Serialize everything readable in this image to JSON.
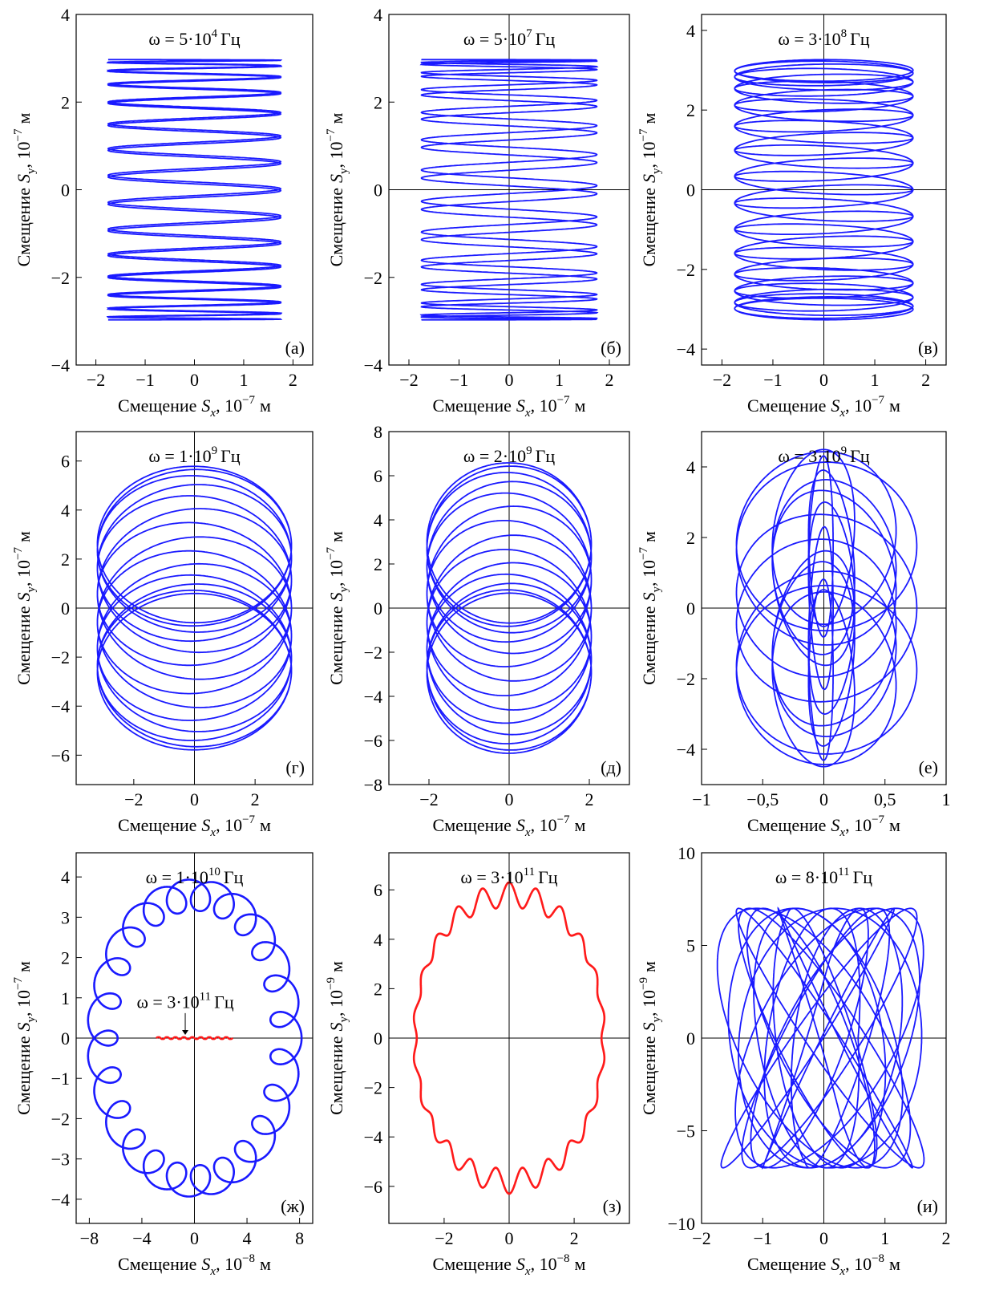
{
  "colors": {
    "blue": "#1a1aff",
    "red": "#ff1a1a",
    "axis": "#000000"
  },
  "chart_data": [
    {
      "type": "line",
      "panel_label": "(а)",
      "freq_base": "5·10",
      "freq_exp": "4",
      "freq_unit": "Гц",
      "xlabel_text": "Смещение",
      "xlabel_var": "S",
      "xlabel_sub": "x",
      "xlabel_pow": "10",
      "xlabel_exp": "−7",
      "xlabel_unit": "м",
      "ylabel_text": "Смещение",
      "ylabel_var": "S",
      "ylabel_sub": "y",
      "ylabel_pow": "10",
      "ylabel_exp": "−7",
      "ylabel_unit": "м",
      "xlim": [
        -2.4,
        2.4
      ],
      "ylim": [
        -4,
        4
      ],
      "xticks": [
        -2,
        -1,
        0,
        1,
        2
      ],
      "xtick_labels": [
        "−2",
        "−1",
        "0",
        "1",
        "2"
      ],
      "yticks": [
        -4,
        -2,
        0,
        2,
        4
      ],
      "ytick_labels": [
        "−4",
        "−2",
        "0",
        "2",
        "4"
      ],
      "zero_lines": false,
      "series": [
        {
          "color": "blue",
          "x_amp": 1.75,
          "y_amp": 2.97,
          "freq_ratio": 0.03,
          "loops": 30,
          "style": "lissajous"
        }
      ]
    },
    {
      "type": "line",
      "panel_label": "(б)",
      "freq_base": "5·10",
      "freq_exp": "7",
      "freq_unit": "Гц",
      "xlabel_text": "Смещение",
      "xlabel_var": "S",
      "xlabel_sub": "x",
      "xlabel_pow": "10",
      "xlabel_exp": "−7",
      "xlabel_unit": "м",
      "ylabel_text": "Смещение",
      "ylabel_var": "S",
      "ylabel_sub": "y",
      "ylabel_pow": "10",
      "ylabel_exp": "−7",
      "ylabel_unit": "м",
      "xlim": [
        -2.4,
        2.4
      ],
      "ylim": [
        -4,
        4
      ],
      "xticks": [
        -2,
        -1,
        0,
        1,
        2
      ],
      "xtick_labels": [
        "−2",
        "−1",
        "0",
        "1",
        "2"
      ],
      "yticks": [
        -4,
        -2,
        0,
        2,
        4
      ],
      "ytick_labels": [
        "−4",
        "−2",
        "0",
        "2",
        "4"
      ],
      "zero_lines": true,
      "series": [
        {
          "color": "blue",
          "x_amp": 1.75,
          "y_amp": 2.97,
          "freq_ratio": 0.033,
          "loops": 26,
          "style": "lissajous"
        }
      ]
    },
    {
      "type": "line",
      "panel_label": "(в)",
      "freq_base": "3·10",
      "freq_exp": "8",
      "freq_unit": "Гц",
      "xlabel_text": "Смещение",
      "xlabel_var": "S",
      "xlabel_sub": "x",
      "xlabel_pow": "10",
      "xlabel_exp": "−7",
      "xlabel_unit": "м",
      "ylabel_text": "Смещение",
      "ylabel_var": "S",
      "ylabel_sub": "y",
      "ylabel_pow": "10",
      "ylabel_exp": "−7",
      "ylabel_unit": "м",
      "xlim": [
        -2.4,
        2.4
      ],
      "ylim": [
        -4.4,
        4.4
      ],
      "xticks": [
        -2,
        -1,
        0,
        1,
        2
      ],
      "xtick_labels": [
        "−2",
        "−1",
        "0",
        "1",
        "2"
      ],
      "yticks": [
        -4,
        -2,
        0,
        2,
        4
      ],
      "ytick_labels": [
        "−4",
        "−2",
        "0",
        "2",
        "4"
      ],
      "zero_lines": true,
      "series": [
        {
          "color": "blue",
          "x_amp": 1.75,
          "y_amp": 3.0,
          "ring_ratio": 0.09,
          "freq_ratio": 0.038,
          "loops": 28,
          "style": "rings"
        }
      ]
    },
    {
      "type": "line",
      "panel_label": "(г)",
      "freq_base": "1·10",
      "freq_exp": "9",
      "freq_unit": "Гц",
      "xlabel_text": "Смещение",
      "xlabel_var": "S",
      "xlabel_sub": "x",
      "xlabel_pow": "10",
      "xlabel_exp": "−7",
      "xlabel_unit": "м",
      "ylabel_text": "Смещение",
      "ylabel_var": "S",
      "ylabel_sub": "y",
      "ylabel_pow": "10",
      "ylabel_exp": "−7",
      "ylabel_unit": "м",
      "xlim": [
        -3.9,
        3.9
      ],
      "ylim": [
        -7.2,
        7.2
      ],
      "xticks": [
        -2,
        0,
        2
      ],
      "xtick_labels": [
        "−2",
        "0",
        "2"
      ],
      "yticks": [
        -6,
        -4,
        -2,
        0,
        2,
        4,
        6
      ],
      "ytick_labels": [
        "−6",
        "−4",
        "−2",
        "0",
        "2",
        "4",
        "6"
      ],
      "zero_lines": true,
      "series": [
        {
          "color": "blue",
          "x_amp": 3.2,
          "y_amp": 5.8,
          "style": "drum",
          "loops": 14
        }
      ]
    },
    {
      "type": "line",
      "panel_label": "(д)",
      "freq_base": "2·10",
      "freq_exp": "9",
      "freq_unit": "Гц",
      "xlabel_text": "Смещение",
      "xlabel_var": "S",
      "xlabel_sub": "x",
      "xlabel_pow": "10",
      "xlabel_exp": "−7",
      "xlabel_unit": "м",
      "ylabel_text": "Смещение",
      "ylabel_var": "S",
      "ylabel_sub": "y",
      "ylabel_pow": "10",
      "ylabel_exp": "−7",
      "ylabel_unit": "м",
      "xlim": [
        -3,
        3
      ],
      "ylim": [
        -8,
        8
      ],
      "xticks": [
        -2,
        0,
        2
      ],
      "xtick_labels": [
        "−2",
        "0",
        "2"
      ],
      "yticks": [
        -8,
        -6,
        -4,
        -2,
        0,
        2,
        4,
        6,
        8
      ],
      "ytick_labels": [
        "−8",
        "−6",
        "−4",
        "−2",
        "0",
        "2",
        "4",
        "6",
        "8"
      ],
      "zero_lines": true,
      "series": [
        {
          "color": "blue",
          "x_amp": 2.05,
          "y_amp": 6.6,
          "style": "drum",
          "loops": 14
        }
      ]
    },
    {
      "type": "line",
      "panel_label": "(е)",
      "freq_base": "3·10",
      "freq_exp": "9",
      "freq_unit": "Гц",
      "xlabel_text": "Смещение",
      "xlabel_var": "S",
      "xlabel_sub": "x",
      "xlabel_pow": "10",
      "xlabel_exp": "−7",
      "xlabel_unit": "м",
      "ylabel_text": "Смещение",
      "ylabel_var": "S",
      "ylabel_sub": "y",
      "ylabel_pow": "10",
      "ylabel_exp": "−7",
      "ylabel_unit": "м",
      "xlim": [
        -1,
        1
      ],
      "ylim": [
        -5,
        5
      ],
      "xticks": [
        -1,
        -0.5,
        0,
        0.5,
        1
      ],
      "xtick_labels": [
        "−1",
        "−0,5",
        "0",
        "0,5",
        "1"
      ],
      "yticks": [
        -4,
        -2,
        0,
        2,
        4
      ],
      "ytick_labels": [
        "−4",
        "−2",
        "0",
        "2",
        "4"
      ],
      "zero_lines": true,
      "series": [
        {
          "color": "blue",
          "x_amp": 0.76,
          "y_amp": 4.5,
          "style": "tube",
          "loops": 18
        }
      ]
    },
    {
      "type": "line",
      "panel_label": "(ж)",
      "freq_base": "1·10",
      "freq_exp": "10",
      "freq_unit": "Гц",
      "annotation_base": "3·10",
      "annotation_exp": "11",
      "annotation_unit": "Гц",
      "xlabel_text": "Смещение",
      "xlabel_var": "S",
      "xlabel_sub": "x",
      "xlabel_pow": "10",
      "xlabel_exp": "−8",
      "xlabel_unit": "м",
      "ylabel_text": "Смещение",
      "ylabel_var": "S",
      "ylabel_sub": "y",
      "ylabel_pow": "10",
      "ylabel_exp": "−7",
      "ylabel_unit": "м",
      "xlim": [
        -9,
        9
      ],
      "ylim": [
        -4.6,
        4.6
      ],
      "xticks": [
        -8,
        -4,
        0,
        4,
        8
      ],
      "xtick_labels": [
        "−8",
        "−4",
        "0",
        "4",
        "8"
      ],
      "yticks": [
        -4,
        -3,
        -2,
        -1,
        0,
        1,
        2,
        3,
        4
      ],
      "ytick_labels": [
        "−4",
        "−3",
        "−2",
        "−1",
        "0",
        "1",
        "2",
        "3",
        "4"
      ],
      "zero_lines": true,
      "series": [
        {
          "color": "blue",
          "x_amp": 7.0,
          "y_amp": 3.55,
          "style": "epicycle",
          "loops": 24,
          "loop_r": 0.055
        },
        {
          "color": "red",
          "x_amp": 2.9,
          "y_amp": 0.03,
          "style": "flat",
          "loops": 9
        }
      ]
    },
    {
      "type": "line",
      "panel_label": "(з)",
      "freq_base": "3·10",
      "freq_exp": "11",
      "freq_unit": "Гц",
      "xlabel_text": "Смещение",
      "xlabel_var": "S",
      "xlabel_sub": "x",
      "xlabel_pow": "10",
      "xlabel_exp": "−8",
      "xlabel_unit": "м",
      "ylabel_text": "Смещение",
      "ylabel_var": "S",
      "ylabel_sub": "y",
      "ylabel_pow": "10",
      "ylabel_exp": "−9",
      "ylabel_unit": "м",
      "xlim": [
        -3.7,
        3.7
      ],
      "ylim": [
        -7.5,
        7.5
      ],
      "xticks": [
        -2,
        0,
        2
      ],
      "xtick_labels": [
        "−2",
        "0",
        "2"
      ],
      "yticks": [
        -6,
        -4,
        -2,
        0,
        2,
        4,
        6
      ],
      "ytick_labels": [
        "−6",
        "−4",
        "−2",
        "0",
        "2",
        "4",
        "6"
      ],
      "zero_lines": true,
      "series": [
        {
          "color": "red",
          "x_amp": 2.9,
          "y_amp": 6.3,
          "style": "wavy",
          "loops": 22
        }
      ]
    },
    {
      "type": "line",
      "panel_label": "(и)",
      "freq_base": "8·10",
      "freq_exp": "11",
      "freq_unit": "Гц",
      "xlabel_text": "Смещение",
      "xlabel_var": "S",
      "xlabel_sub": "x",
      "xlabel_pow": "10",
      "xlabel_exp": "−8",
      "xlabel_unit": "м",
      "ylabel_text": "Смещение",
      "ylabel_var": "S",
      "ylabel_sub": "y",
      "ylabel_pow": "10",
      "ylabel_exp": "−9",
      "ylabel_unit": "м",
      "xlim": [
        -2,
        2
      ],
      "ylim": [
        -10,
        10
      ],
      "xticks": [
        -2,
        -1,
        0,
        1,
        2
      ],
      "xtick_labels": [
        "−2",
        "−1",
        "0",
        "1",
        "2"
      ],
      "yticks": [
        -10,
        -5,
        0,
        5,
        10
      ],
      "ytick_labels": [
        "−10",
        "−5",
        "0",
        "5",
        "10"
      ],
      "zero_lines": true,
      "series": [
        {
          "color": "blue",
          "x_amp": 1.6,
          "y_amp": 7.0,
          "style": "barrel",
          "loops": 16
        }
      ]
    }
  ]
}
